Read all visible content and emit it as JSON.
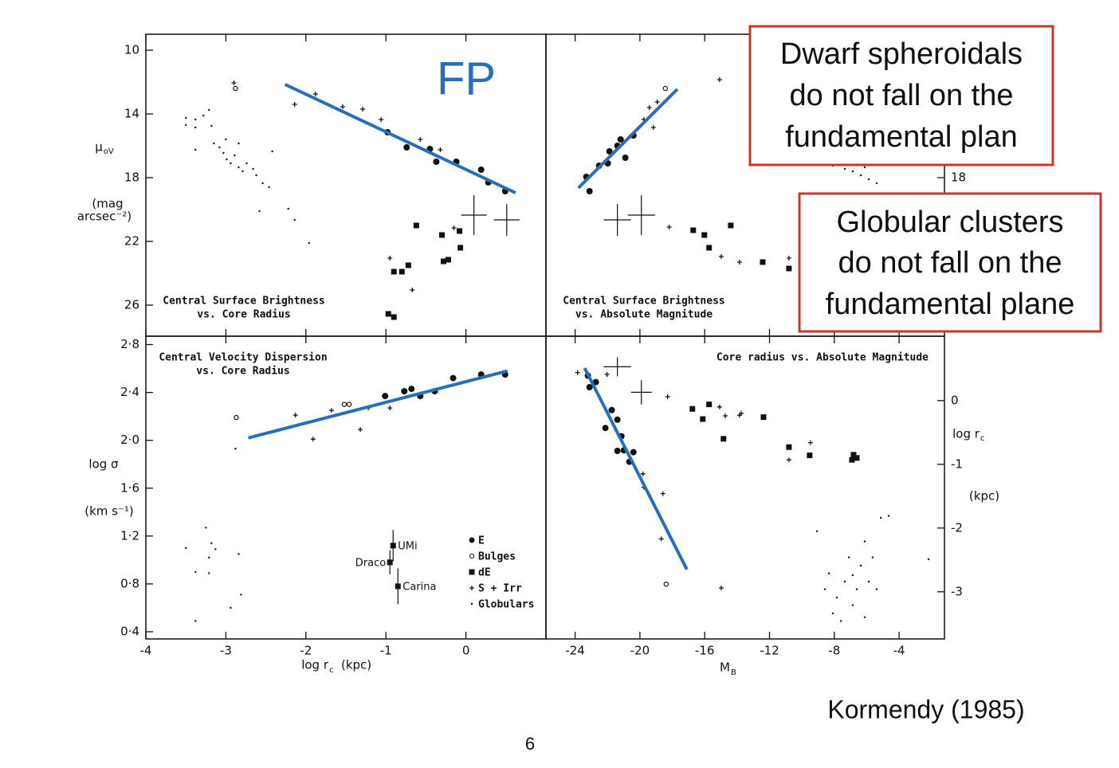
{
  "chart_data": [
    {
      "type": "scatter",
      "title_lines": [
        "Central Surface Brightness",
        "vs. Core Radius"
      ],
      "title_align": "left",
      "ylabel": "μ",
      "ylabel_sub": "oV",
      "ylabel_units": [
        "(mag",
        "arcsec⁻²)"
      ],
      "xlim": [
        -4,
        1
      ],
      "xticks": [
        -4,
        -3,
        -2,
        -1,
        0
      ],
      "xtick_labels": false,
      "ylim": [
        27.95,
        9
      ],
      "yticks": [
        10,
        14,
        18,
        22,
        26
      ],
      "yaxis_side": "left",
      "fit": {
        "color": "#2a6ebb",
        "x": [
          -2.26,
          0.62
        ],
        "values": [
          12.15,
          18.95
        ]
      },
      "error_crosses": {
        "x": [
          0.1,
          0.51
        ],
        "values": [
          20.35,
          20.65
        ],
        "xerr": [
          0.16,
          0.16
        ],
        "yerr": [
          1.25,
          1.0
        ]
      },
      "series": [
        {
          "marker": "circle-filled",
          "color": "#111",
          "x": [
            -0.98,
            -0.74,
            -0.45,
            -0.37,
            -0.12,
            0.19,
            0.28,
            0.49
          ],
          "values": [
            15.15,
            16.1,
            16.2,
            17.0,
            17.0,
            17.5,
            18.3,
            18.85
          ]
        },
        {
          "marker": "circle-open",
          "color": "#111",
          "x": [
            -2.88
          ],
          "values": [
            12.4
          ]
        },
        {
          "marker": "square",
          "color": "#111",
          "x": [
            -0.97,
            -0.9,
            -0.9,
            -0.8,
            -0.72,
            -0.62,
            -0.3,
            -0.28,
            -0.22,
            -0.07,
            -0.08
          ],
          "values": [
            26.55,
            26.75,
            23.9,
            23.9,
            23.5,
            21.0,
            21.6,
            23.25,
            23.15,
            22.4,
            21.35
          ]
        },
        {
          "marker": "plus",
          "color": "#111",
          "x": [
            -2.14,
            -1.88,
            -1.54,
            -1.29,
            -1.06,
            -0.57,
            -0.32,
            -0.15,
            -0.95,
            -0.67,
            -2.9
          ],
          "values": [
            13.4,
            12.75,
            13.55,
            13.7,
            14.35,
            15.6,
            16.25,
            21.15,
            23.05,
            25.05,
            12.05
          ]
        },
        {
          "marker": "dot",
          "color": "#111",
          "x": [
            -3.5,
            -3.5,
            -3.38,
            -3.38,
            -3.28,
            -3.21,
            -3.18,
            -3.15,
            -3.08,
            -3.03,
            -2.99,
            -2.94,
            -2.89,
            -2.84,
            -2.79,
            -2.74,
            -2.66,
            -2.62,
            -2.54,
            -2.46,
            -2.58,
            -2.42,
            -2.22,
            -2.14,
            -1.96,
            -3.38,
            -3.0,
            -2.84
          ],
          "values": [
            14.25,
            14.7,
            14.35,
            14.85,
            14.1,
            13.75,
            14.75,
            15.85,
            16.1,
            16.45,
            16.85,
            17.1,
            16.6,
            17.35,
            17.6,
            17.1,
            17.45,
            17.85,
            18.35,
            18.6,
            20.1,
            16.35,
            19.95,
            20.65,
            22.1,
            16.25,
            15.6,
            15.85
          ]
        }
      ]
    },
    {
      "type": "scatter",
      "title_lines": [
        "Central Surface Brightness",
        "vs. Absolute Magnitude"
      ],
      "title_align": "left",
      "xlim": [
        -25.8,
        -1.2
      ],
      "xticks": [
        -24,
        -20,
        -16,
        -12,
        -8,
        -4
      ],
      "xtick_labels": false,
      "ylim": [
        27.95,
        9
      ],
      "yticks": [
        18
      ],
      "yaxis_side": "right",
      "fit": {
        "color": "#2a6ebb",
        "x": [
          -23.8,
          -17.69
        ],
        "values": [
          18.65,
          12.45
        ]
      },
      "error_crosses": {
        "x": [
          -21.39,
          -19.91
        ],
        "values": [
          20.65,
          20.35
        ],
        "xerr": [
          0.84,
          0.84
        ],
        "yerr": [
          1.0,
          1.25
        ]
      },
      "series": [
        {
          "marker": "circle-filled",
          "color": "#111",
          "x": [
            -23.11,
            -23.31,
            -22.52,
            -21.98,
            -21.88,
            -21.39,
            -21.19,
            -20.9,
            -20.4
          ],
          "values": [
            18.85,
            17.95,
            17.25,
            17.1,
            16.35,
            16.0,
            15.6,
            16.75,
            15.35
          ]
        },
        {
          "marker": "circle-open",
          "color": "#111",
          "x": [
            -18.43
          ],
          "values": [
            12.4
          ]
        },
        {
          "marker": "square",
          "color": "#111",
          "x": [
            -16.71,
            -15.73,
            -14.39,
            -12.42,
            -10.8,
            -16.02
          ],
          "values": [
            21.3,
            22.4,
            21.0,
            23.3,
            23.7,
            21.6
          ]
        },
        {
          "marker": "plus",
          "color": "#111",
          "x": [
            -19.76,
            -19.42,
            -19.17,
            -18.93,
            -18.19,
            -15.08,
            -14.98,
            -13.85,
            -10.8
          ],
          "values": [
            14.35,
            13.6,
            14.85,
            13.25,
            21.1,
            11.85,
            22.95,
            23.3,
            23.05
          ]
        },
        {
          "marker": "dot",
          "color": "#111",
          "x": [
            -8.09,
            -7.35,
            -6.86,
            -6.36,
            -5.87,
            -5.38,
            -7.1,
            -6.12
          ],
          "values": [
            17.25,
            17.45,
            17.6,
            17.85,
            18.1,
            18.35,
            17.1,
            17.35
          ]
        }
      ]
    },
    {
      "type": "scatter",
      "title_lines": [
        "Central Velocity Dispersion",
        "vs. Core Radius"
      ],
      "title_align": "left",
      "xlabel": "log r",
      "xlabel_sub": "c",
      "xlabel_units": "(kpc)",
      "ylabel": "log σ",
      "ylabel_units": [
        "(km s⁻¹)"
      ],
      "xlim": [
        -4,
        1
      ],
      "xticks": [
        -4,
        -3,
        -2,
        -1,
        0
      ],
      "xtick_labels": true,
      "ylim": [
        0.34,
        2.87
      ],
      "yaxis_side": "left",
      "yticks": [
        {
          "value": 2.8,
          "label": "2·8"
        },
        {
          "value": 2.4,
          "label": "2·4"
        },
        {
          "value": 2.0,
          "label": "2·0"
        },
        {
          "value": 1.6,
          "label": "1·6"
        },
        {
          "value": 1.2,
          "label": "1·2"
        },
        {
          "value": 0.8,
          "label": "0·8"
        },
        {
          "value": 0.4,
          "label": "0·4"
        }
      ],
      "legend": "lower right",
      "fit": {
        "color": "#2a6ebb",
        "x": [
          -2.72,
          0.52
        ],
        "values": [
          2.02,
          2.58
        ]
      },
      "series": [
        {
          "name": "E",
          "marker": "circle-filled",
          "color": "#111",
          "x": [
            -1.01,
            -0.77,
            -0.68,
            -0.57,
            -0.39,
            -0.16,
            0.19,
            0.49
          ],
          "values": [
            2.37,
            2.41,
            2.43,
            2.37,
            2.41,
            2.52,
            2.55,
            2.55
          ]
        },
        {
          "name": "Bulges",
          "marker": "circle-open",
          "color": "#111",
          "x": [
            -2.87,
            -1.52,
            -1.46
          ],
          "values": [
            2.19,
            2.3,
            2.3
          ]
        },
        {
          "name": "dE",
          "marker": "square",
          "color": "#111",
          "x": [
            -0.91,
            -0.95,
            -0.85
          ],
          "values": [
            1.12,
            0.98,
            0.78
          ],
          "yerr": [
            0.13,
            0.1,
            0.15
          ],
          "point_labels": [
            "UMi",
            "Draco",
            "Carina"
          ]
        },
        {
          "name": "S + Irr",
          "marker": "plus",
          "color": "#111",
          "x": [
            -2.13,
            -1.91,
            -1.68,
            -1.32,
            -0.95,
            -1.22
          ],
          "values": [
            2.21,
            2.01,
            2.25,
            2.09,
            2.27,
            2.27
          ]
        },
        {
          "name": "Globulars",
          "marker": "dot",
          "color": "#111",
          "x": [
            -3.5,
            -3.38,
            -3.25,
            -3.18,
            -3.21,
            -3.13,
            -2.84,
            -3.21,
            -2.94,
            -2.81,
            -3.38,
            -2.88
          ],
          "values": [
            1.1,
            0.9,
            1.27,
            1.14,
            1.02,
            1.09,
            1.05,
            0.89,
            0.6,
            0.71,
            0.49,
            1.93
          ]
        }
      ]
    },
    {
      "type": "scatter",
      "title_lines": [
        "Core radius  vs.  Absolute Magnitude"
      ],
      "title_align": "right",
      "xlabel": "M",
      "xlabel_sub": "B",
      "ylabel": "log r",
      "ylabel_sub": "c",
      "ylabel_units": [
        "(kpc)"
      ],
      "xlim": [
        -25.8,
        -1.2
      ],
      "xticks": [
        -24,
        -20,
        -16,
        -12,
        -8,
        -4
      ],
      "xtick_labels": true,
      "ylim": [
        -3.74,
        1.01
      ],
      "yticks": [
        0,
        -1,
        -2,
        -3
      ],
      "yaxis_side": "right",
      "fit": {
        "color": "#2a6ebb",
        "x": [
          -23.41,
          -17.1
        ],
        "values": [
          0.51,
          -2.65
        ]
      },
      "error_crosses": {
        "x": [
          -21.39,
          -19.91
        ],
        "values": [
          0.53,
          0.13
        ],
        "xerr": [
          0.84,
          0.64
        ],
        "yerr": [
          0.15,
          0.19
        ]
      },
      "series": [
        {
          "marker": "circle-filled",
          "color": "#111",
          "x": [
            -23.21,
            -23.11,
            -22.72,
            -22.13,
            -21.74,
            -21.39,
            -21.14,
            -20.99,
            -21.39,
            -20.65,
            -20.4
          ],
          "values": [
            0.39,
            0.21,
            0.29,
            -0.43,
            -0.15,
            -0.3,
            -0.56,
            -0.78,
            -0.79,
            -0.96,
            -0.81
          ]
        },
        {
          "marker": "circle-open",
          "color": "#111",
          "x": [
            -18.38
          ],
          "values": [
            -2.88
          ]
        },
        {
          "marker": "square",
          "color": "#111",
          "x": [
            -16.76,
            -16.12,
            -15.73,
            -14.84,
            -12.37,
            -10.8,
            -9.52,
            -6.81,
            -6.61,
            -6.91
          ],
          "values": [
            -0.13,
            -0.29,
            -0.06,
            -0.6,
            -0.26,
            -0.73,
            -0.86,
            -0.85,
            -0.9,
            -0.93
          ]
        },
        {
          "marker": "plus",
          "color": "#111",
          "x": [
            -23.85,
            -22.03,
            -18.29,
            -15.08,
            -14.73,
            -13.85,
            -13.75,
            -9.47,
            -10.8,
            -19.81,
            -19.76,
            -18.58,
            -14.98,
            -18.68
          ],
          "values": [
            0.44,
            0.41,
            0.06,
            -0.1,
            -0.24,
            -0.23,
            -0.2,
            -0.66,
            -0.93,
            -1.15,
            -1.36,
            -1.46,
            -2.94,
            -2.17
          ]
        },
        {
          "marker": "dot",
          "color": "#111",
          "x": [
            -9.07,
            -8.33,
            -7.84,
            -7.35,
            -7.1,
            -6.86,
            -6.61,
            -6.36,
            -6.12,
            -5.87,
            -5.63,
            -5.38,
            -5.13,
            -4.64,
            -8.09,
            -7.59,
            -6.12,
            -2.18,
            -8.58,
            -6.86
          ],
          "values": [
            -2.05,
            -2.71,
            -3.09,
            -2.84,
            -2.46,
            -3.21,
            -2.96,
            -2.59,
            -2.21,
            -2.84,
            -2.46,
            -2.96,
            -1.84,
            -1.81,
            -3.34,
            -3.46,
            -3.4,
            -2.49,
            -2.96,
            -2.74
          ]
        }
      ]
    }
  ],
  "slide": {
    "fp_label": "FP",
    "box_dwarf": [
      "Dwarf spheroidals",
      "do not fall on the",
      "fundamental plan"
    ],
    "box_globular": [
      "Globular clusters",
      "do not fall on the",
      "fundamental plane"
    ],
    "citation": "Kormendy (1985)",
    "page_number": "6"
  }
}
